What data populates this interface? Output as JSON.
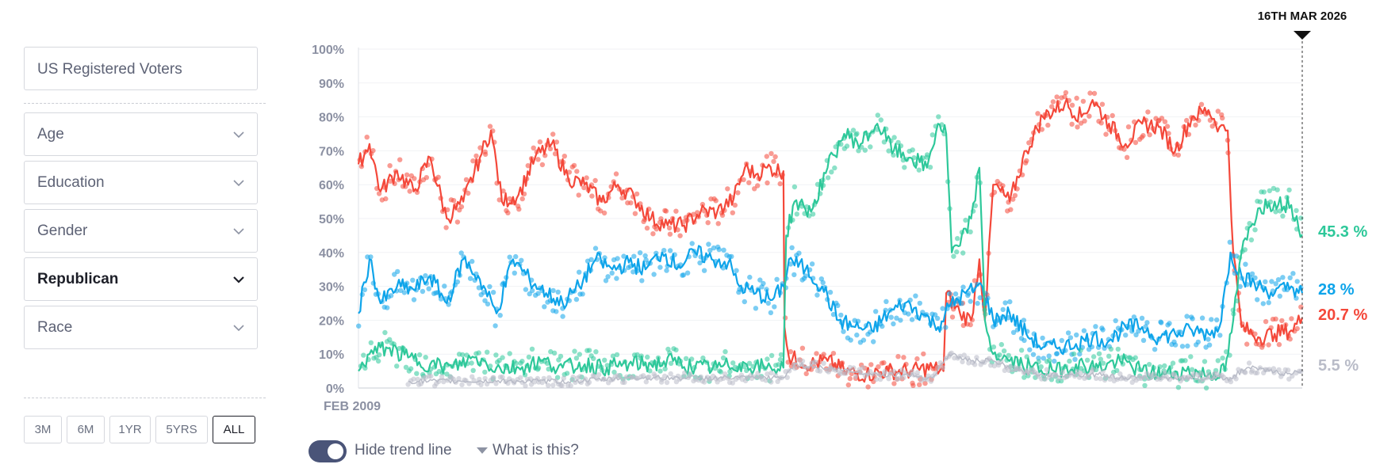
{
  "filters": {
    "search_value": "US Registered Voters",
    "dropdowns": [
      {
        "label": "Age",
        "active": false
      },
      {
        "label": "Education",
        "active": false
      },
      {
        "label": "Gender",
        "active": false
      },
      {
        "label": "Republican",
        "active": true
      },
      {
        "label": "Race",
        "active": false
      }
    ]
  },
  "ranges": [
    {
      "label": "3M",
      "selected": false
    },
    {
      "label": "6M",
      "selected": false
    },
    {
      "label": "1YR",
      "selected": false
    },
    {
      "label": "5YRS",
      "selected": false
    },
    {
      "label": "ALL",
      "selected": true
    }
  ],
  "footer": {
    "toggle_label": "Hide trend line",
    "toggle_on": true,
    "help_label": "What is this?"
  },
  "chart_data": {
    "type": "line",
    "ylim": [
      0,
      100
    ],
    "y_ticks": [
      "0%",
      "10%",
      "20%",
      "30%",
      "40%",
      "50%",
      "60%",
      "70%",
      "80%",
      "90%",
      "100%"
    ],
    "x_start_label": "FEB 2009",
    "x_end_label": "16TH MAR 2026",
    "x_range": [
      2009.1,
      2026.2
    ],
    "grid": true,
    "series": [
      {
        "color": "#f4483a",
        "end_label": "20.7 %",
        "points": [
          [
            2009.1,
            66
          ],
          [
            2009.3,
            72
          ],
          [
            2009.5,
            58
          ],
          [
            2009.8,
            64
          ],
          [
            2010.1,
            58
          ],
          [
            2010.4,
            68
          ],
          [
            2010.7,
            50
          ],
          [
            2011.0,
            55
          ],
          [
            2011.3,
            68
          ],
          [
            2011.5,
            76
          ],
          [
            2011.7,
            55
          ],
          [
            2012.0,
            57
          ],
          [
            2012.3,
            68
          ],
          [
            2012.6,
            72
          ],
          [
            2012.9,
            62
          ],
          [
            2013.2,
            60
          ],
          [
            2013.5,
            55
          ],
          [
            2013.8,
            60
          ],
          [
            2014.1,
            56
          ],
          [
            2014.4,
            50
          ],
          [
            2014.7,
            48
          ],
          [
            2015.0,
            48
          ],
          [
            2015.3,
            52
          ],
          [
            2015.6,
            52
          ],
          [
            2015.9,
            56
          ],
          [
            2016.1,
            65
          ],
          [
            2016.3,
            63
          ],
          [
            2016.5,
            65
          ],
          [
            2016.8,
            64
          ],
          [
            2016.82,
            18
          ],
          [
            2016.9,
            9
          ],
          [
            2017.3,
            7
          ],
          [
            2017.6,
            8
          ],
          [
            2017.9,
            5
          ],
          [
            2018.3,
            4
          ],
          [
            2018.7,
            5
          ],
          [
            2019.1,
            5
          ],
          [
            2019.5,
            6
          ],
          [
            2019.7,
            5
          ],
          [
            2019.75,
            28
          ],
          [
            2020.0,
            22
          ],
          [
            2020.2,
            20
          ],
          [
            2020.35,
            38
          ],
          [
            2020.45,
            20
          ],
          [
            2020.6,
            60
          ],
          [
            2020.9,
            55
          ],
          [
            2021.2,
            70
          ],
          [
            2021.5,
            80
          ],
          [
            2021.9,
            84
          ],
          [
            2022.2,
            80
          ],
          [
            2022.4,
            85
          ],
          [
            2022.7,
            78
          ],
          [
            2023.0,
            72
          ],
          [
            2023.3,
            78
          ],
          [
            2023.6,
            77
          ],
          [
            2023.9,
            70
          ],
          [
            2024.2,
            80
          ],
          [
            2024.5,
            82
          ],
          [
            2024.7,
            77
          ],
          [
            2024.85,
            76
          ],
          [
            2024.95,
            40
          ],
          [
            2025.1,
            18
          ],
          [
            2025.4,
            15
          ],
          [
            2025.7,
            16
          ],
          [
            2026.0,
            17
          ],
          [
            2026.2,
            20.7
          ]
        ]
      },
      {
        "color": "#0ea4ea",
        "end_label": "28 %",
        "points": [
          [
            2009.1,
            22
          ],
          [
            2009.3,
            38
          ],
          [
            2009.5,
            25
          ],
          [
            2009.8,
            30
          ],
          [
            2010.1,
            29
          ],
          [
            2010.4,
            33
          ],
          [
            2010.7,
            25
          ],
          [
            2011.0,
            38
          ],
          [
            2011.3,
            32
          ],
          [
            2011.6,
            22
          ],
          [
            2011.9,
            38
          ],
          [
            2012.2,
            32
          ],
          [
            2012.5,
            28
          ],
          [
            2012.8,
            25
          ],
          [
            2013.1,
            30
          ],
          [
            2013.4,
            38
          ],
          [
            2013.7,
            35
          ],
          [
            2014.0,
            37
          ],
          [
            2014.3,
            35
          ],
          [
            2014.6,
            40
          ],
          [
            2014.9,
            36
          ],
          [
            2015.2,
            40
          ],
          [
            2015.5,
            38
          ],
          [
            2015.8,
            37
          ],
          [
            2016.0,
            30
          ],
          [
            2016.3,
            28
          ],
          [
            2016.6,
            26
          ],
          [
            2016.8,
            30
          ],
          [
            2016.9,
            38
          ],
          [
            2017.2,
            35
          ],
          [
            2017.5,
            30
          ],
          [
            2017.8,
            20
          ],
          [
            2018.1,
            18
          ],
          [
            2018.4,
            17
          ],
          [
            2018.7,
            22
          ],
          [
            2019.0,
            25
          ],
          [
            2019.3,
            22
          ],
          [
            2019.6,
            18
          ],
          [
            2019.8,
            24
          ],
          [
            2020.1,
            28
          ],
          [
            2020.4,
            30
          ],
          [
            2020.6,
            20
          ],
          [
            2020.9,
            22
          ],
          [
            2021.2,
            16
          ],
          [
            2021.5,
            12
          ],
          [
            2021.8,
            12
          ],
          [
            2022.1,
            13
          ],
          [
            2022.4,
            15
          ],
          [
            2022.7,
            14
          ],
          [
            2023.0,
            18
          ],
          [
            2023.3,
            18
          ],
          [
            2023.6,
            15
          ],
          [
            2023.9,
            16
          ],
          [
            2024.2,
            17
          ],
          [
            2024.5,
            16
          ],
          [
            2024.7,
            18
          ],
          [
            2024.9,
            40
          ],
          [
            2025.1,
            33
          ],
          [
            2025.4,
            30
          ],
          [
            2025.7,
            28
          ],
          [
            2026.0,
            30
          ],
          [
            2026.2,
            28
          ]
        ]
      },
      {
        "color": "#2ec89a",
        "end_label": "45.3 %",
        "points": [
          [
            2009.1,
            5
          ],
          [
            2009.3,
            10
          ],
          [
            2009.6,
            12
          ],
          [
            2010.0,
            9
          ],
          [
            2010.4,
            7
          ],
          [
            2010.8,
            6
          ],
          [
            2011.2,
            9
          ],
          [
            2011.6,
            6
          ],
          [
            2012.0,
            6
          ],
          [
            2012.4,
            8
          ],
          [
            2012.8,
            6
          ],
          [
            2013.2,
            7
          ],
          [
            2013.6,
            6
          ],
          [
            2014.0,
            7
          ],
          [
            2014.4,
            7
          ],
          [
            2014.8,
            8
          ],
          [
            2015.2,
            6
          ],
          [
            2015.6,
            6
          ],
          [
            2016.0,
            7
          ],
          [
            2016.5,
            6
          ],
          [
            2016.8,
            6
          ],
          [
            2016.85,
            45
          ],
          [
            2017.0,
            55
          ],
          [
            2017.3,
            52
          ],
          [
            2017.6,
            65
          ],
          [
            2017.9,
            75
          ],
          [
            2018.2,
            72
          ],
          [
            2018.5,
            78
          ],
          [
            2018.8,
            70
          ],
          [
            2019.1,
            68
          ],
          [
            2019.4,
            65
          ],
          [
            2019.6,
            78
          ],
          [
            2019.75,
            75
          ],
          [
            2019.85,
            40
          ],
          [
            2020.0,
            42
          ],
          [
            2020.2,
            50
          ],
          [
            2020.35,
            65
          ],
          [
            2020.45,
            20
          ],
          [
            2020.6,
            10
          ],
          [
            2020.9,
            8
          ],
          [
            2021.3,
            6
          ],
          [
            2021.7,
            5
          ],
          [
            2022.1,
            7
          ],
          [
            2022.5,
            6
          ],
          [
            2022.9,
            8
          ],
          [
            2023.3,
            5
          ],
          [
            2023.7,
            4
          ],
          [
            2024.1,
            5
          ],
          [
            2024.5,
            4
          ],
          [
            2024.8,
            5
          ],
          [
            2024.95,
            20
          ],
          [
            2025.1,
            40
          ],
          [
            2025.4,
            53
          ],
          [
            2025.7,
            55
          ],
          [
            2026.0,
            54
          ],
          [
            2026.2,
            45.3
          ]
        ]
      },
      {
        "color": "#b9bcc8",
        "end_label": "5.5 %",
        "points": [
          [
            2010.0,
            2
          ],
          [
            2011.0,
            2
          ],
          [
            2012.0,
            2
          ],
          [
            2013.0,
            2
          ],
          [
            2014.0,
            3
          ],
          [
            2015.0,
            3
          ],
          [
            2016.0,
            3
          ],
          [
            2016.8,
            3
          ],
          [
            2017.0,
            7
          ],
          [
            2017.5,
            6
          ],
          [
            2018.0,
            5
          ],
          [
            2018.5,
            4
          ],
          [
            2019.0,
            4
          ],
          [
            2019.5,
            3
          ],
          [
            2019.8,
            10
          ],
          [
            2020.2,
            8
          ],
          [
            2020.6,
            8
          ],
          [
            2021.0,
            5
          ],
          [
            2021.5,
            4
          ],
          [
            2022.0,
            4
          ],
          [
            2022.5,
            4
          ],
          [
            2023.0,
            3
          ],
          [
            2023.5,
            3
          ],
          [
            2024.0,
            3
          ],
          [
            2024.5,
            3
          ],
          [
            2024.9,
            3
          ],
          [
            2025.2,
            6
          ],
          [
            2025.6,
            5
          ],
          [
            2026.0,
            4
          ],
          [
            2026.2,
            5.5
          ]
        ]
      }
    ]
  }
}
